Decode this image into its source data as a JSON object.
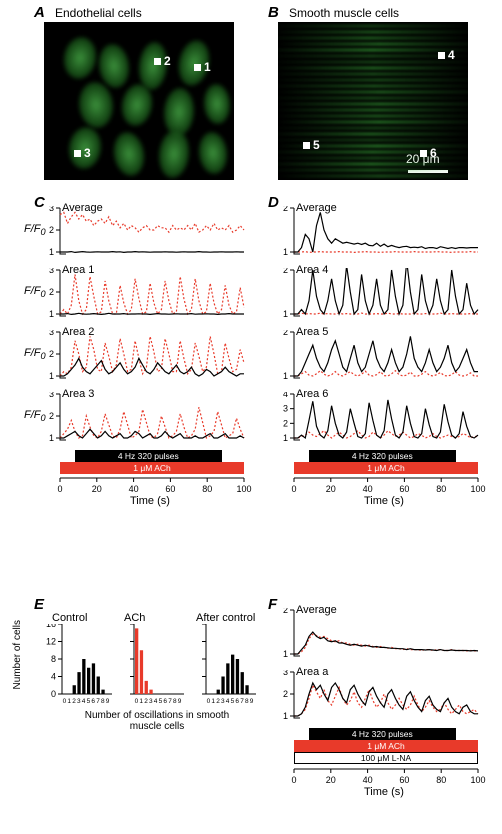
{
  "panelA": {
    "label": "A",
    "title": "Endothelial cells",
    "markers": [
      {
        "id": "1",
        "x": 150,
        "y": 42
      },
      {
        "id": "2",
        "x": 110,
        "y": 36
      },
      {
        "id": "3",
        "x": 30,
        "y": 128
      }
    ]
  },
  "panelB": {
    "label": "B",
    "title": "Smooth muscle cells",
    "markers": [
      {
        "id": "4",
        "x": 160,
        "y": 30
      },
      {
        "id": "5",
        "x": 25,
        "y": 120
      },
      {
        "id": "6",
        "x": 142,
        "y": 128
      }
    ],
    "scale_text": "20 μm"
  },
  "colors": {
    "red": "#e83a2a",
    "black": "#000000",
    "stim_black": "#000000",
    "stim_red": "#e83a2a",
    "stim_white_border": "#000000",
    "bg_white": "#ffffff"
  },
  "fonts": {
    "panel_label_size": 15,
    "title_size": 12,
    "axis_tick_size": 9
  },
  "panelCD": {
    "ylabel": "F/F₀",
    "trace_w": 190,
    "trace_h": 48,
    "y_ticks": {
      "yset3": [
        1,
        2,
        3
      ],
      "yset2": [
        1,
        2
      ],
      "yset4": [
        1,
        2,
        3,
        4
      ]
    }
  },
  "panelC": {
    "label": "C",
    "time_range": [
      0,
      100
    ],
    "time_ticks": [
      0,
      20,
      40,
      60,
      80,
      100
    ],
    "xlabel": "Time (s)",
    "stim1": {
      "label": "4 Hz 320 pulses",
      "start": 8,
      "end": 88
    },
    "stim2": {
      "label": "1 μM ACh",
      "start": 0,
      "end": 100
    },
    "traces": [
      {
        "name": "Average",
        "yticks": "yset3",
        "red": [
          2.7,
          2.8,
          2.3,
          2.6,
          2.8,
          2.5,
          2.7,
          2.4,
          2.5,
          2.2,
          2.4,
          2.5,
          2.3,
          2.6,
          2.2,
          2.4,
          2.1,
          2.3,
          2.0,
          2.2,
          2.1,
          1.9,
          2.1,
          2.2,
          2.0,
          2.0,
          2.2,
          2.1,
          2.1,
          1.9,
          2.2,
          2.0,
          2.1,
          2.0,
          2.2,
          2.0,
          2.3,
          1.9,
          2.0,
          2.2,
          2.0,
          2.3,
          2.0,
          2.1,
          2.0,
          2.2,
          1.9,
          2.0,
          2.2,
          2.0
        ],
        "black": [
          1.0,
          1.0,
          1.0,
          1.02,
          0.98,
          1.0,
          1.02,
          1.0,
          0.99,
          1.0,
          1.01,
          1.0,
          1.0,
          1.0,
          1.02,
          1.0,
          1.01,
          0.98,
          1.0,
          1.0,
          1.02,
          1.0,
          1.01,
          1.0,
          0.99,
          1.0,
          1.0,
          1.0,
          1.01,
          1.0,
          1.0,
          0.99,
          1.0,
          1.01,
          1.0,
          1.0,
          1.0,
          1.02,
          1.0,
          1.0,
          0.99,
          1.0,
          1.0,
          1.01,
          1.0,
          1.0,
          1.0,
          1.01,
          1.0,
          1.0
        ]
      },
      {
        "name": "Area 1",
        "yticks": "yset3",
        "red": [
          1.0,
          1.2,
          1.0,
          1.4,
          2.8,
          1.6,
          1.0,
          1.2,
          2.7,
          1.8,
          1.0,
          1.1,
          2.5,
          1.6,
          1.0,
          1.0,
          2.3,
          1.5,
          1.0,
          1.2,
          2.6,
          1.7,
          1.0,
          1.1,
          2.4,
          1.5,
          1.0,
          1.2,
          2.5,
          1.6,
          1.0,
          1.1,
          2.7,
          1.7,
          1.0,
          1.2,
          2.6,
          1.6,
          1.0,
          1.1,
          2.4,
          1.5,
          1.0,
          1.2,
          2.3,
          1.4,
          1.0,
          1.1,
          2.2,
          1.3
        ],
        "black": [
          1.0,
          1.0,
          1.02,
          0.98,
          1.0,
          1.03,
          1.0,
          0.99,
          1.0,
          1.02,
          1.0,
          0.98,
          1.0,
          1.03,
          1.0,
          1.0,
          1.0,
          1.02,
          0.99,
          1.0,
          1.0,
          1.01,
          1.0,
          1.0,
          0.98,
          1.0,
          1.02,
          1.0,
          1.0,
          0.99,
          1.0,
          1.01,
          1.0,
          1.0,
          1.0,
          1.02,
          0.99,
          1.0,
          1.0,
          1.01,
          1.0,
          1.0,
          0.98,
          1.0,
          1.0,
          1.02,
          1.0,
          1.0,
          1.0,
          1.0
        ]
      },
      {
        "name": "Area 2",
        "yticks": "yset3",
        "red": [
          1.0,
          1.2,
          1.1,
          1.4,
          2.6,
          2.0,
          1.2,
          1.4,
          2.8,
          2.2,
          1.3,
          1.2,
          2.5,
          1.9,
          1.2,
          1.5,
          2.7,
          2.0,
          1.2,
          1.3,
          2.6,
          1.8,
          1.1,
          1.4,
          2.8,
          2.1,
          1.2,
          1.3,
          2.7,
          2.0,
          1.2,
          1.2,
          2.6,
          1.8,
          1.1,
          1.3,
          2.5,
          1.9,
          1.2,
          1.4,
          2.8,
          2.0,
          1.1,
          1.2,
          2.5,
          1.8,
          1.2,
          1.3,
          2.2,
          1.6
        ],
        "black": [
          1.0,
          1.0,
          1.1,
          1.3,
          1.5,
          1.8,
          1.4,
          1.2,
          1.1,
          1.3,
          1.5,
          1.7,
          1.3,
          1.1,
          1.2,
          1.4,
          1.6,
          1.3,
          1.1,
          1.2,
          1.4,
          1.8,
          1.5,
          1.2,
          1.1,
          1.3,
          1.6,
          1.4,
          1.2,
          1.1,
          1.3,
          1.5,
          1.2,
          1.1,
          1.2,
          1.4,
          1.1,
          1.0,
          1.1,
          1.3,
          1.2,
          1.0,
          1.1,
          1.2,
          1.4,
          1.2,
          1.1,
          1.0,
          1.1,
          1.1
        ]
      },
      {
        "name": "Area 3",
        "yticks": "yset3",
        "red": [
          1.0,
          1.2,
          1.4,
          1.8,
          1.3,
          1.0,
          1.1,
          2.0,
          1.5,
          1.1,
          1.0,
          1.3,
          2.1,
          1.6,
          1.1,
          1.0,
          1.4,
          2.2,
          1.6,
          1.0,
          1.1,
          1.3,
          2.3,
          1.7,
          1.1,
          1.0,
          1.2,
          2.0,
          1.5,
          1.0,
          1.1,
          1.3,
          2.1,
          1.5,
          1.0,
          1.1,
          1.4,
          2.4,
          1.7,
          1.0,
          1.1,
          1.3,
          2.2,
          1.6,
          1.0,
          1.1,
          1.2,
          1.9,
          1.4,
          1.0
        ],
        "black": [
          1.0,
          1.0,
          1.1,
          1.2,
          1.3,
          1.1,
          1.0,
          1.2,
          1.4,
          1.2,
          1.0,
          1.1,
          1.3,
          1.1,
          1.0,
          1.1,
          1.2,
          1.0,
          1.0,
          1.1,
          1.3,
          1.2,
          1.0,
          1.1,
          1.2,
          1.0,
          1.0,
          1.1,
          1.3,
          1.1,
          1.0,
          1.1,
          1.2,
          1.0,
          1.0,
          1.0,
          1.1,
          1.0,
          1.0,
          1.1,
          1.2,
          1.0,
          1.0,
          1.1,
          1.2,
          1.0,
          1.0,
          1.0,
          1.1,
          1.0
        ]
      }
    ]
  },
  "panelD": {
    "label": "D",
    "time_range": [
      0,
      100
    ],
    "time_ticks": [
      0,
      20,
      40,
      60,
      80,
      100
    ],
    "xlabel": "Time (s)",
    "stim1": {
      "label": "4 Hz 320 pulses",
      "start": 8,
      "end": 88
    },
    "stim2": {
      "label": "1 μM ACh",
      "start": 0,
      "end": 100
    },
    "traces": [
      {
        "name": "Average",
        "yticks": "yset2",
        "red": [
          1.0,
          1.0,
          1.0,
          1.01,
          0.99,
          1.0,
          1.0,
          1.01,
          1.0,
          1.0,
          1.0,
          1.0,
          1.01,
          1.0,
          1.0,
          1.0,
          0.99,
          1.0,
          1.0,
          1.01,
          1.0,
          1.0,
          1.0,
          0.99,
          1.0,
          1.0,
          1.0,
          1.01,
          1.0,
          1.0,
          1.0,
          1.0,
          1.01,
          1.0,
          1.0,
          1.0,
          1.0,
          1.0,
          1.01,
          1.0,
          1.0,
          1.0,
          0.99,
          1.0,
          1.0,
          1.0,
          1.0,
          1.01,
          1.0,
          1.0
        ],
        "black": [
          1.0,
          1.0,
          1.1,
          1.4,
          1.3,
          1.0,
          1.6,
          1.9,
          1.5,
          1.3,
          1.2,
          1.3,
          1.25,
          1.2,
          1.22,
          1.2,
          1.18,
          1.2,
          1.17,
          1.2,
          1.15,
          1.14,
          1.2,
          1.13,
          1.18,
          1.12,
          1.15,
          1.12,
          1.1,
          1.12,
          1.13,
          1.1,
          1.11,
          1.1,
          1.12,
          1.08,
          1.1,
          1.1,
          1.08,
          1.12,
          1.1,
          1.08,
          1.1,
          1.08,
          1.1,
          1.1,
          1.09,
          1.1,
          1.1,
          1.1
        ]
      },
      {
        "name": "Area 4",
        "yticks": "yset2",
        "red": [
          1.0,
          1.0,
          1.02,
          1.0,
          1.01,
          1.0,
          1.0,
          1.02,
          1.0,
          1.01,
          1.0,
          1.0,
          1.02,
          1.0,
          1.01,
          1.0,
          1.0,
          1.0,
          1.02,
          1.0,
          1.0,
          1.0,
          1.01,
          1.0,
          1.0,
          1.02,
          1.0,
          1.0,
          1.01,
          1.0,
          1.0,
          1.0,
          1.02,
          1.0,
          1.0,
          1.01,
          1.0,
          1.0,
          1.0,
          1.02,
          1.0,
          1.0,
          1.01,
          1.0,
          1.0,
          1.0,
          1.0,
          1.01,
          1.0,
          1.0
        ],
        "black": [
          1.0,
          1.0,
          1.1,
          1.0,
          1.3,
          2.0,
          1.4,
          1.1,
          1.0,
          1.3,
          1.8,
          1.3,
          1.0,
          1.2,
          2.1,
          1.5,
          1.0,
          1.1,
          1.9,
          1.3,
          1.0,
          1.2,
          1.8,
          1.2,
          1.0,
          1.1,
          2.0,
          1.4,
          1.0,
          1.2,
          2.2,
          1.5,
          1.0,
          1.1,
          1.9,
          1.3,
          1.0,
          1.2,
          1.8,
          1.3,
          1.0,
          1.1,
          2.0,
          1.4,
          1.0,
          1.1,
          1.7,
          1.2,
          1.0,
          1.1
        ]
      },
      {
        "name": "Area 5",
        "yticks": "yset2",
        "red": [
          1.0,
          1.0,
          1.05,
          1.1,
          1.02,
          1.0,
          1.05,
          1.12,
          1.04,
          1.0,
          1.03,
          1.1,
          1.02,
          1.0,
          1.05,
          1.1,
          1.03,
          1.0,
          1.04,
          1.11,
          1.02,
          1.0,
          1.03,
          1.1,
          1.01,
          1.0,
          1.05,
          1.12,
          1.03,
          1.0,
          1.02,
          1.09,
          1.0,
          1.0,
          1.04,
          1.1,
          1.02,
          1.0,
          1.03,
          1.08,
          1.01,
          1.0,
          1.03,
          1.1,
          1.02,
          1.0,
          1.02,
          1.07,
          1.0,
          1.0
        ],
        "black": [
          1.0,
          1.0,
          1.1,
          1.3,
          1.5,
          1.7,
          1.4,
          1.2,
          1.1,
          1.3,
          1.6,
          1.8,
          1.5,
          1.2,
          1.1,
          1.4,
          1.7,
          1.3,
          1.1,
          1.2,
          1.5,
          1.8,
          1.4,
          1.2,
          1.1,
          1.3,
          1.6,
          1.3,
          1.1,
          1.2,
          1.5,
          1.9,
          1.4,
          1.2,
          1.1,
          1.3,
          1.6,
          1.3,
          1.1,
          1.2,
          1.4,
          1.7,
          1.3,
          1.1,
          1.2,
          1.4,
          1.6,
          1.3,
          1.1,
          1.1
        ]
      },
      {
        "name": "Area 6",
        "yticks": "yset4",
        "red": [
          1.0,
          1.0,
          1.1,
          1.2,
          1.4,
          1.2,
          1.1,
          1.3,
          1.5,
          1.2,
          1.0,
          1.2,
          1.4,
          1.2,
          1.0,
          1.1,
          1.3,
          1.5,
          1.2,
          1.0,
          1.1,
          1.4,
          1.2,
          1.0,
          1.2,
          1.5,
          1.3,
          1.1,
          1.2,
          1.4,
          1.2,
          1.0,
          1.1,
          1.3,
          1.2,
          1.0,
          1.1,
          1.3,
          1.1,
          1.0,
          1.1,
          1.2,
          1.1,
          1.0,
          1.1,
          1.3,
          1.2,
          1.0,
          1.1,
          1.1
        ],
        "black": [
          1.0,
          1.0,
          1.2,
          1.0,
          2.2,
          3.5,
          1.8,
          1.2,
          1.0,
          1.5,
          3.2,
          2.0,
          1.2,
          1.0,
          1.4,
          3.0,
          2.0,
          1.1,
          1.0,
          1.3,
          3.4,
          2.2,
          1.2,
          1.0,
          1.5,
          3.6,
          2.3,
          1.2,
          1.0,
          1.4,
          3.2,
          2.0,
          1.1,
          1.0,
          1.3,
          3.0,
          1.9,
          1.1,
          1.0,
          1.4,
          3.3,
          2.1,
          1.2,
          1.0,
          1.3,
          2.8,
          1.8,
          1.1,
          1.0,
          1.2
        ]
      }
    ]
  },
  "panelE": {
    "label": "E",
    "ylabel": "Number of cells",
    "xlabel": "Number of oscillations\nin smooth muscle cells",
    "y_ticks": [
      0,
      4,
      8,
      12,
      16
    ],
    "ylim": [
      0,
      16
    ],
    "x_ticks": [
      0,
      1,
      2,
      3,
      4,
      5,
      6,
      7,
      8,
      9
    ],
    "hist_w": 66,
    "hist_h": 70,
    "histograms": [
      {
        "name": "Control",
        "color_key": "black",
        "values": [
          0,
          0,
          2,
          5,
          8,
          6,
          7,
          4,
          1,
          0
        ]
      },
      {
        "name": "ACh",
        "color_key": "red",
        "values": [
          15,
          10,
          3,
          1,
          0,
          0,
          0,
          0,
          0,
          0
        ]
      },
      {
        "name": "After control",
        "color_key": "black",
        "values": [
          0,
          0,
          1,
          4,
          7,
          9,
          8,
          5,
          2,
          0
        ]
      }
    ]
  },
  "panelF": {
    "label": "F",
    "time_range": [
      0,
      100
    ],
    "time_ticks": [
      0,
      20,
      40,
      60,
      80,
      100
    ],
    "xlabel": "Time (s)",
    "stim1": {
      "label": "4 Hz 320 pulses",
      "start": 8,
      "end": 88
    },
    "stim2": {
      "label": "1 μM ACh",
      "start": 0,
      "end": 100
    },
    "stim3": {
      "label": "100 μM L-NA",
      "start": 0,
      "end": 100
    },
    "traces": [
      {
        "name": "Average",
        "yticks": "yset2",
        "red": [
          1.0,
          1.0,
          1.05,
          1.15,
          1.35,
          1.45,
          1.42,
          1.38,
          1.4,
          1.35,
          1.3,
          1.28,
          1.3,
          1.25,
          1.25,
          1.22,
          1.2,
          1.22,
          1.2,
          1.18,
          1.2,
          1.17,
          1.15,
          1.17,
          1.15,
          1.13,
          1.15,
          1.12,
          1.12,
          1.1,
          1.12,
          1.1,
          1.1,
          1.1,
          1.08,
          1.1,
          1.1,
          1.08,
          1.1,
          1.1,
          1.08,
          1.08,
          1.1,
          1.08,
          1.08,
          1.08,
          1.07,
          1.08,
          1.07,
          1.07
        ],
        "black": [
          1.0,
          1.0,
          1.1,
          1.2,
          1.4,
          1.5,
          1.4,
          1.35,
          1.38,
          1.3,
          1.28,
          1.3,
          1.25,
          1.25,
          1.22,
          1.2,
          1.22,
          1.2,
          1.18,
          1.2,
          1.18,
          1.16,
          1.17,
          1.15,
          1.15,
          1.14,
          1.13,
          1.13,
          1.12,
          1.12,
          1.1,
          1.12,
          1.1,
          1.1,
          1.1,
          1.09,
          1.1,
          1.09,
          1.08,
          1.1,
          1.08,
          1.08,
          1.09,
          1.08,
          1.08,
          1.08,
          1.08,
          1.07,
          1.08,
          1.07
        ]
      },
      {
        "name": "Area a",
        "yticks": "yset3",
        "red": [
          1.0,
          1.0,
          1.1,
          1.3,
          1.8,
          2.4,
          2.1,
          1.8,
          2.2,
          1.7,
          1.5,
          1.9,
          2.3,
          1.8,
          1.5,
          1.7,
          2.1,
          1.6,
          1.4,
          1.8,
          2.2,
          1.7,
          1.4,
          1.6,
          2.0,
          1.6,
          1.3,
          1.5,
          1.8,
          1.5,
          1.3,
          1.5,
          1.9,
          1.5,
          1.2,
          1.4,
          1.7,
          1.4,
          1.2,
          1.3,
          1.6,
          1.3,
          1.1,
          1.3,
          1.5,
          1.2,
          1.1,
          1.2,
          1.3,
          1.1
        ],
        "black": [
          1.0,
          1.0,
          1.1,
          1.4,
          2.0,
          2.5,
          2.2,
          2.4,
          2.0,
          1.7,
          2.3,
          2.5,
          2.2,
          1.8,
          1.6,
          2.2,
          2.4,
          2.0,
          1.7,
          1.5,
          2.1,
          2.3,
          1.9,
          1.6,
          1.4,
          2.0,
          2.2,
          1.8,
          1.5,
          1.3,
          1.9,
          2.1,
          1.7,
          1.4,
          1.2,
          1.7,
          1.9,
          1.5,
          1.3,
          1.2,
          1.6,
          1.8,
          1.4,
          1.2,
          1.1,
          1.4,
          1.5,
          1.2,
          1.1,
          1.1
        ]
      }
    ]
  }
}
